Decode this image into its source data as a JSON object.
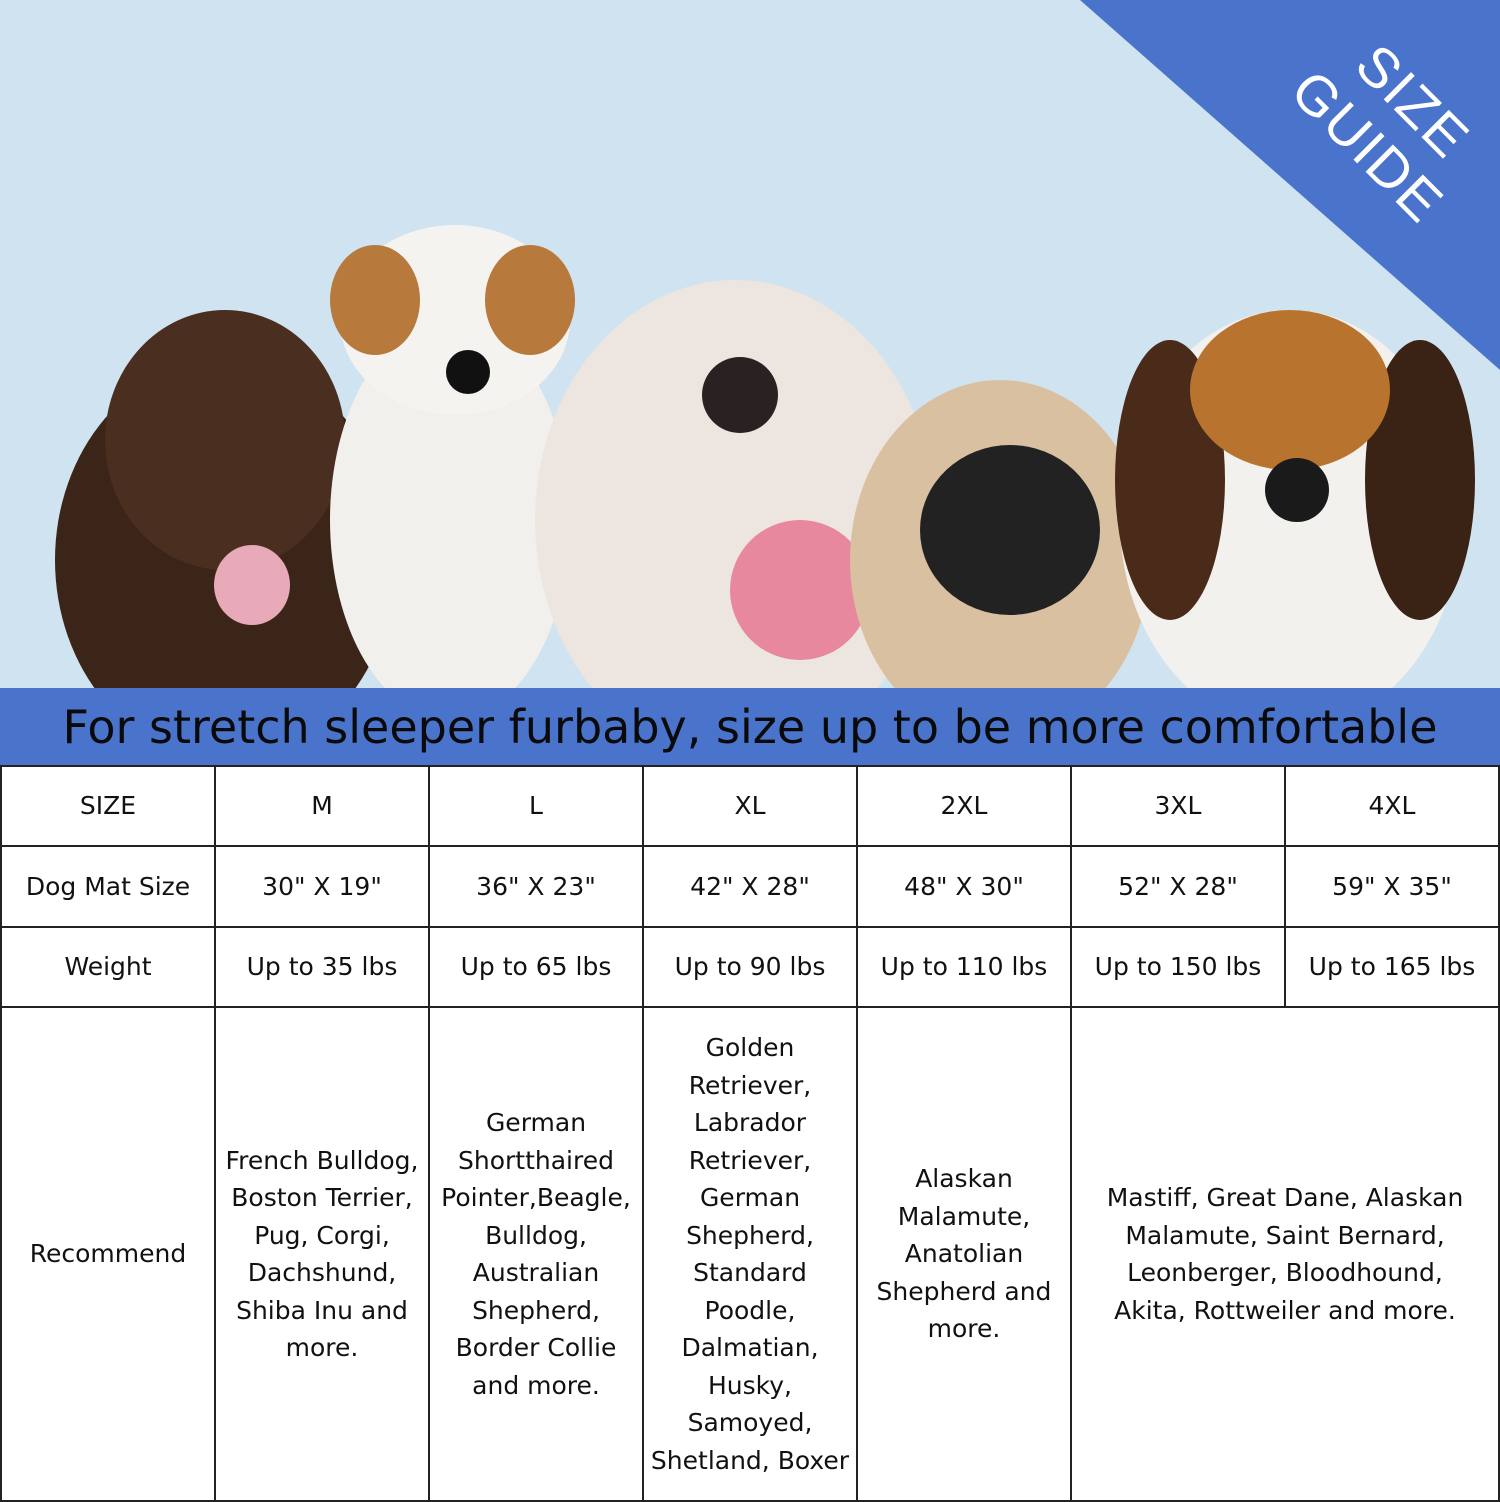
{
  "corner_badge": {
    "text_line1": "SIZE",
    "text_line2": "GUIDE",
    "color": "#4a74cc"
  },
  "photo": {
    "description_alt": "",
    "background": "#cfe3f1"
  },
  "banner": {
    "text": "For stretch sleeper furbaby, size up to be more comfortable",
    "color": "#4a74cc"
  },
  "table": {
    "headers": [
      "SIZE",
      "M",
      "L",
      "XL",
      "2XL",
      "3XL",
      "4XL"
    ],
    "mat_size": {
      "label": "Dog Mat Size",
      "values": [
        "30\" X 19\"",
        "36\" X 23\"",
        "42\" X 28\"",
        "48\" X 30\"",
        "52\" X 28\"",
        "59\" X 35\""
      ]
    },
    "weight": {
      "label": "Weight",
      "values": [
        "Up to 35 lbs",
        "Up to 65 lbs",
        "Up to 90 lbs",
        "Up to 110 lbs",
        "Up to 150 lbs",
        "Up to 165 lbs"
      ]
    },
    "recommend": {
      "label": "Recommend",
      "values": [
        "French Bulldog, Boston Terrier, Pug, Corgi, Dachshund, Shiba Inu and more.",
        "German Shortthaired Pointer,Beagle, Bulldog, Australian Shepherd, Border Collie and more.",
        "Golden Retriever, Labrador Retriever, German Shepherd, Standard Poodle, Dalmatian, Husky, Samoyed, Shetland, Boxer",
        "Alaskan Malamute, Anatolian Shepherd and more.",
        "Mastiff, Great Dane, Alaskan Malamute, Saint Bernard, Leonberger, Bloodhound, Akita, Rottweiler and more."
      ]
    }
  }
}
